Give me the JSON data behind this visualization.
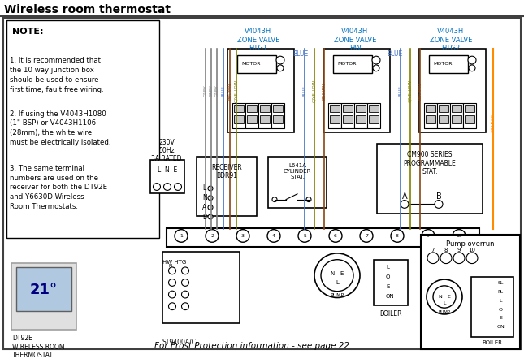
{
  "title": "Wireless room thermostat",
  "bg_color": "#ffffff",
  "text_color_blue": "#0070C0",
  "text_color_orange": "#FF8C00",
  "text_color_black": "#000000",
  "note_title": "NOTE:",
  "note1": "1. It is recommended that\nthe 10 way junction box\nshould be used to ensure\nfirst time, fault free wiring.",
  "note2": "2. If using the V4043H1080\n(1\" BSP) or V4043H1106\n(28mm), the white wire\nmust be electrically isolated.",
  "note3": "3. The same terminal\nnumbers are used on the\nreceiver for both the DT92E\nand Y6630D Wireless\nRoom Thermostats.",
  "label_htg1": "V4043H\nZONE VALVE\nHTG1",
  "label_hw": "V4043H\nZONE VALVE\nHW",
  "label_htg2": "V4043H\nZONE VALVE\nHTG2",
  "label_cm900": "CM900 SERIES\nPROGRAMMABLE\nSTAT.",
  "label_l641a": "L641A\nCYLINDER\nSTAT.",
  "label_receiver": "RECEIVER\nBDR91",
  "label_pump_overrun": "Pump overrun",
  "label_boiler": "BOILER",
  "label_frost": "For Frost Protection information - see page 22",
  "label_dt92e": "DT92E\nWIRELESS ROOM\nTHERMOSTAT",
  "label_230v": "230V\n50Hz\n3A RATED",
  "label_lne": "L  N  E",
  "label_st9400": "ST9400A/C",
  "label_hwhtg": "HW HTG",
  "wire_colors": {
    "grey": "#808080",
    "blue": "#4472C4",
    "brown": "#8B4513",
    "gyellow": "#808000",
    "orange": "#FF8C00"
  }
}
